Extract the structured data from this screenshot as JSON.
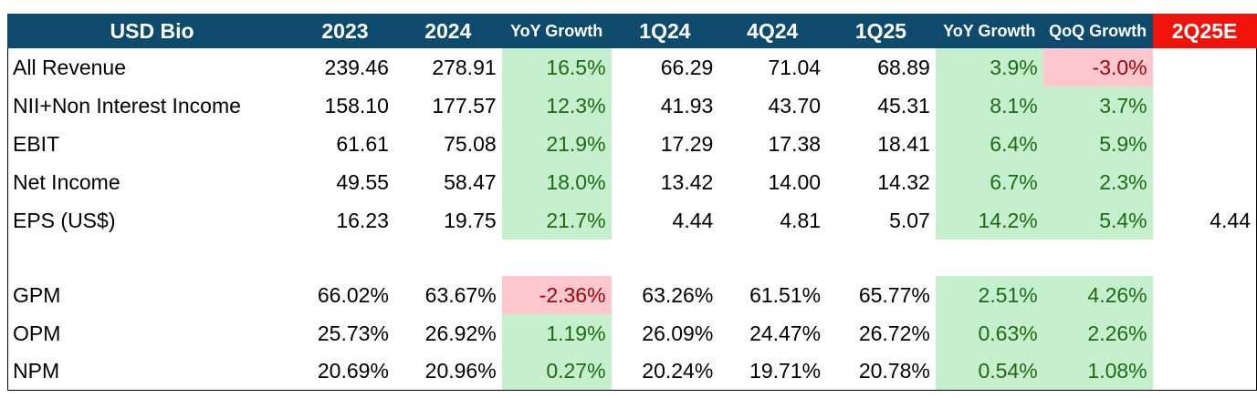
{
  "table": {
    "headers": [
      "USD Bio",
      "2023",
      "2024",
      "YoY Growth",
      "1Q24",
      "4Q24",
      "1Q25",
      "YoY Growth",
      "QoQ Growth",
      "2Q25E"
    ],
    "rows": [
      {
        "label": "All Revenue",
        "cells": [
          "239.46",
          "278.91",
          "16.5%",
          "66.29",
          "71.04",
          "68.89",
          "3.9%",
          "-3.0%",
          ""
        ]
      },
      {
        "label": "NII+Non Interest Income",
        "cells": [
          "158.10",
          "177.57",
          "12.3%",
          "41.93",
          "43.70",
          "45.31",
          "8.1%",
          "3.7%",
          ""
        ]
      },
      {
        "label": "EBIT",
        "cells": [
          "61.61",
          "75.08",
          "21.9%",
          "17.29",
          "17.38",
          "18.41",
          "6.4%",
          "5.9%",
          ""
        ]
      },
      {
        "label": "Net Income",
        "cells": [
          "49.55",
          "58.47",
          "18.0%",
          "13.42",
          "14.00",
          "14.32",
          "6.7%",
          "2.3%",
          ""
        ]
      },
      {
        "label": "EPS (US$)",
        "cells": [
          "16.23",
          "19.75",
          "21.7%",
          "4.44",
          "4.81",
          "5.07",
          "14.2%",
          "5.4%",
          "4.44"
        ]
      },
      {
        "label": "",
        "cells": [
          "",
          "",
          "",
          "",
          "",
          "",
          "",
          "",
          ""
        ]
      },
      {
        "label": "GPM",
        "cells": [
          "66.02%",
          "63.67%",
          "-2.36%",
          "63.26%",
          "61.51%",
          "65.77%",
          "2.51%",
          "4.26%",
          ""
        ]
      },
      {
        "label": "OPM",
        "cells": [
          "25.73%",
          "26.92%",
          "1.19%",
          "26.09%",
          "24.47%",
          "26.72%",
          "0.63%",
          "2.26%",
          ""
        ]
      },
      {
        "label": "NPM",
        "cells": [
          "20.69%",
          "20.96%",
          "0.27%",
          "20.24%",
          "19.71%",
          "20.78%",
          "0.54%",
          "1.08%",
          ""
        ]
      }
    ]
  },
  "colors": {
    "header_bg": "#0e4a6b",
    "estimate_header_bg": "#f2120c",
    "positive_fill": "#c6efce",
    "positive_text": "#1e6b14",
    "negative_fill": "#ffc7ce",
    "negative_text": "#9c0006"
  }
}
